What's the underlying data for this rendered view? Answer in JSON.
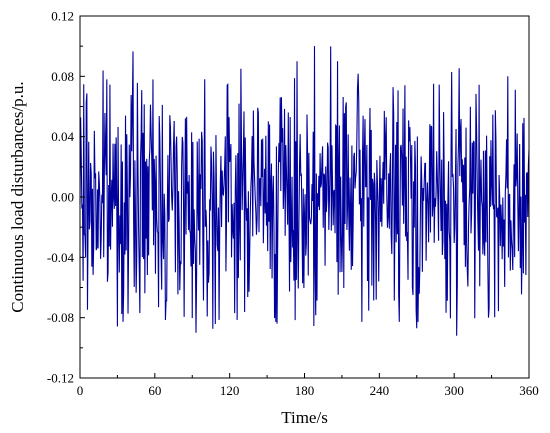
{
  "chart_data": {
    "type": "line",
    "title": "",
    "xlabel": "Time/s",
    "ylabel": "Continuous load disturbances/p.u.",
    "xlim": [
      0,
      360
    ],
    "ylim": [
      -0.12,
      0.12
    ],
    "x_ticks": [
      0,
      60,
      120,
      180,
      240,
      300,
      360
    ],
    "x_tick_labels": [
      "0",
      "60",
      "120",
      "180",
      "240",
      "300",
      "360"
    ],
    "y_ticks": [
      -0.12,
      -0.08,
      -0.04,
      0.0,
      0.04,
      0.08,
      0.12
    ],
    "y_tick_labels": [
      "-0.12",
      "-0.08",
      "-0.04",
      "0.00",
      "0.04",
      "0.08",
      "0.12"
    ],
    "grid": false,
    "legend": "none",
    "series": [
      {
        "color": "#00009c",
        "sample_interval_s": 0.5,
        "amplitude_range": [
          -0.092,
          0.1
        ],
        "typical_range": [
          -0.06,
          0.06
        ],
        "notable_peaks": [
          {
            "x": 188,
            "y": 0.1
          },
          {
            "x": 302,
            "y": -0.092
          },
          {
            "x": 93,
            "y": -0.09
          },
          {
            "x": 270,
            "y": -0.087
          }
        ]
      }
    ]
  }
}
